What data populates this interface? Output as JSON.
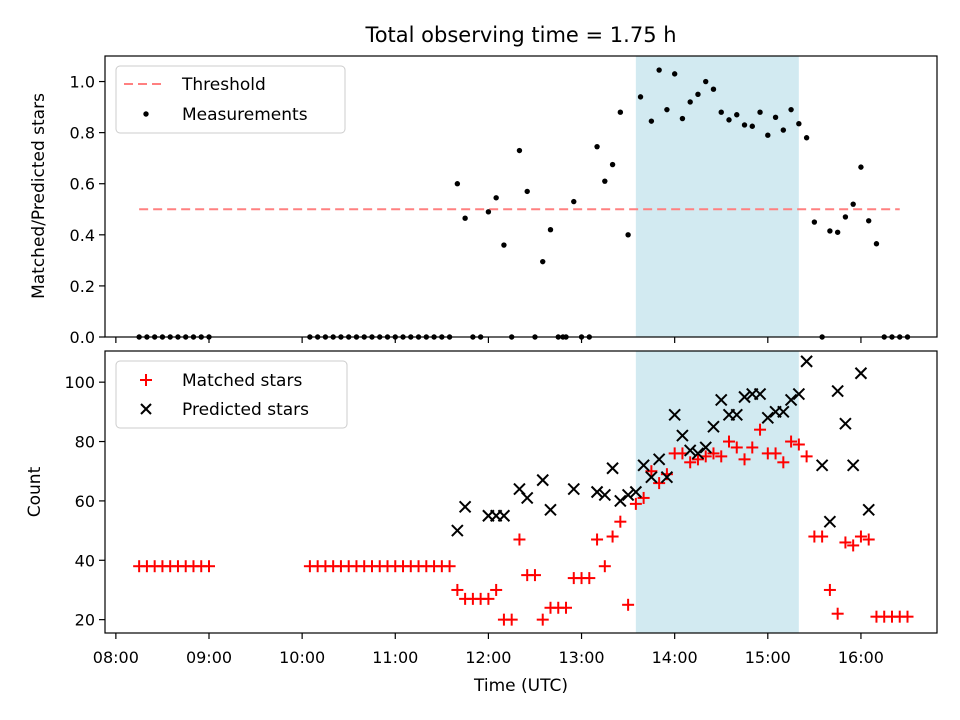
{
  "title": "Total observing time = 1.75 h",
  "colors": {
    "threshold": "#ff8080",
    "measurement": "#000000",
    "matched": "#ff0000",
    "predicted": "#000000",
    "highlight": "#add8e6"
  },
  "chart_data": [
    {
      "type": "scatter",
      "panel": "top",
      "ylabel": "Matched/Predicted stars",
      "ylim": [
        0,
        1.1
      ],
      "yticks": [
        "0.0",
        "0.2",
        "0.4",
        "0.6",
        "0.8",
        "1.0"
      ],
      "xlim": [
        "07:53",
        "16:49"
      ],
      "highlight_span": [
        "13:35",
        "15:20"
      ],
      "legend_position": "top-left",
      "threshold": {
        "name": "Threshold",
        "y": 0.5,
        "x": [
          "08:15",
          "16:25"
        ],
        "style": "dashed"
      },
      "series": [
        {
          "name": "Measurements",
          "marker": "dot",
          "points": [
            [
              "08:15",
              0
            ],
            [
              "08:20",
              0
            ],
            [
              "08:25",
              0
            ],
            [
              "08:30",
              0
            ],
            [
              "08:35",
              0
            ],
            [
              "08:40",
              0
            ],
            [
              "08:45",
              0
            ],
            [
              "08:50",
              0
            ],
            [
              "08:55",
              0
            ],
            [
              "09:00",
              0
            ],
            [
              "10:05",
              0
            ],
            [
              "10:10",
              0
            ],
            [
              "10:15",
              0
            ],
            [
              "10:20",
              0
            ],
            [
              "10:25",
              0
            ],
            [
              "10:30",
              0
            ],
            [
              "10:35",
              0
            ],
            [
              "10:40",
              0
            ],
            [
              "10:45",
              0
            ],
            [
              "10:50",
              0
            ],
            [
              "10:55",
              0
            ],
            [
              "11:00",
              0
            ],
            [
              "11:05",
              0
            ],
            [
              "11:10",
              0
            ],
            [
              "11:15",
              0
            ],
            [
              "11:20",
              0
            ],
            [
              "11:25",
              0
            ],
            [
              "11:30",
              0
            ],
            [
              "11:35",
              0
            ],
            [
              "11:40",
              0.6
            ],
            [
              "11:45",
              0.465
            ],
            [
              "11:50",
              0
            ],
            [
              "11:55",
              0
            ],
            [
              "12:00",
              0.49
            ],
            [
              "12:05",
              0.545
            ],
            [
              "12:10",
              0.36
            ],
            [
              "12:15",
              0
            ],
            [
              "12:20",
              0.73
            ],
            [
              "12:25",
              0.57
            ],
            [
              "12:30",
              0
            ],
            [
              "12:35",
              0.295
            ],
            [
              "12:40",
              0.42
            ],
            [
              "12:45",
              0
            ],
            [
              "12:48",
              0
            ],
            [
              "12:50",
              0
            ],
            [
              "12:55",
              0.53
            ],
            [
              "13:00",
              0
            ],
            [
              "13:05",
              0
            ],
            [
              "13:10",
              0.745
            ],
            [
              "13:15",
              0.61
            ],
            [
              "13:20",
              0.675
            ],
            [
              "13:25",
              0.88
            ],
            [
              "13:30",
              0.4
            ],
            [
              "13:38",
              0.94
            ],
            [
              "13:45",
              0.845
            ],
            [
              "13:50",
              1.045
            ],
            [
              "13:55",
              0.89
            ],
            [
              "14:00",
              1.03
            ],
            [
              "14:05",
              0.855
            ],
            [
              "14:10",
              0.92
            ],
            [
              "14:15",
              0.95
            ],
            [
              "14:20",
              1.0
            ],
            [
              "14:25",
              0.97
            ],
            [
              "14:30",
              0.88
            ],
            [
              "14:35",
              0.85
            ],
            [
              "14:40",
              0.87
            ],
            [
              "14:45",
              0.83
            ],
            [
              "14:50",
              0.825
            ],
            [
              "14:55",
              0.88
            ],
            [
              "15:00",
              0.79
            ],
            [
              "15:05",
              0.86
            ],
            [
              "15:10",
              0.81
            ],
            [
              "15:15",
              0.89
            ],
            [
              "15:20",
              0.835
            ],
            [
              "15:25",
              0.78
            ],
            [
              "15:30",
              0.45
            ],
            [
              "15:35",
              0
            ],
            [
              "15:40",
              0.415
            ],
            [
              "15:45",
              0.41
            ],
            [
              "15:50",
              0.47
            ],
            [
              "15:55",
              0.52
            ],
            [
              "16:00",
              0.665
            ],
            [
              "16:05",
              0.455
            ],
            [
              "16:10",
              0.365
            ],
            [
              "16:15",
              0
            ],
            [
              "16:20",
              0
            ],
            [
              "16:25",
              0
            ],
            [
              "16:30",
              0
            ]
          ]
        }
      ]
    },
    {
      "type": "scatter",
      "panel": "bottom",
      "xlabel": "Time (UTC)",
      "ylabel": "Count",
      "ylim": [
        15.5,
        110.5
      ],
      "yticks": [
        "20",
        "40",
        "60",
        "80",
        "100"
      ],
      "xlim": [
        "07:53",
        "16:49"
      ],
      "xticks": [
        "08:00",
        "09:00",
        "10:00",
        "11:00",
        "12:00",
        "13:00",
        "14:00",
        "15:00",
        "16:00"
      ],
      "highlight_span": [
        "13:35",
        "15:20"
      ],
      "legend_position": "top-left",
      "series": [
        {
          "name": "Matched stars",
          "marker": "plus",
          "points": [
            [
              "08:15",
              38
            ],
            [
              "08:20",
              38
            ],
            [
              "08:25",
              38
            ],
            [
              "08:30",
              38
            ],
            [
              "08:35",
              38
            ],
            [
              "08:40",
              38
            ],
            [
              "08:45",
              38
            ],
            [
              "08:50",
              38
            ],
            [
              "08:55",
              38
            ],
            [
              "09:00",
              38
            ],
            [
              "10:05",
              38
            ],
            [
              "10:10",
              38
            ],
            [
              "10:15",
              38
            ],
            [
              "10:20",
              38
            ],
            [
              "10:25",
              38
            ],
            [
              "10:30",
              38
            ],
            [
              "10:35",
              38
            ],
            [
              "10:40",
              38
            ],
            [
              "10:45",
              38
            ],
            [
              "10:50",
              38
            ],
            [
              "10:55",
              38
            ],
            [
              "11:00",
              38
            ],
            [
              "11:05",
              38
            ],
            [
              "11:10",
              38
            ],
            [
              "11:15",
              38
            ],
            [
              "11:20",
              38
            ],
            [
              "11:25",
              38
            ],
            [
              "11:30",
              38
            ],
            [
              "11:35",
              38
            ],
            [
              "11:40",
              30
            ],
            [
              "11:45",
              27
            ],
            [
              "11:50",
              27
            ],
            [
              "11:55",
              27
            ],
            [
              "12:00",
              27
            ],
            [
              "12:05",
              30
            ],
            [
              "12:10",
              20
            ],
            [
              "12:15",
              20
            ],
            [
              "12:20",
              47
            ],
            [
              "12:25",
              35
            ],
            [
              "12:30",
              35
            ],
            [
              "12:35",
              20
            ],
            [
              "12:40",
              24
            ],
            [
              "12:45",
              24
            ],
            [
              "12:50",
              24
            ],
            [
              "12:55",
              34
            ],
            [
              "13:00",
              34
            ],
            [
              "13:05",
              34
            ],
            [
              "13:10",
              47
            ],
            [
              "13:15",
              38
            ],
            [
              "13:20",
              48
            ],
            [
              "13:25",
              53
            ],
            [
              "13:30",
              25
            ],
            [
              "13:35",
              59
            ],
            [
              "13:40",
              61
            ],
            [
              "13:45",
              70
            ],
            [
              "13:50",
              66
            ],
            [
              "13:55",
              69
            ],
            [
              "14:00",
              76
            ],
            [
              "14:05",
              76
            ],
            [
              "14:10",
              73
            ],
            [
              "14:15",
              74
            ],
            [
              "14:20",
              75
            ],
            [
              "14:25",
              76
            ],
            [
              "14:30",
              75
            ],
            [
              "14:35",
              80
            ],
            [
              "14:40",
              78
            ],
            [
              "14:45",
              74
            ],
            [
              "14:50",
              78
            ],
            [
              "14:55",
              84
            ],
            [
              "15:00",
              76
            ],
            [
              "15:05",
              76
            ],
            [
              "15:10",
              73
            ],
            [
              "15:15",
              80
            ],
            [
              "15:20",
              79
            ],
            [
              "15:25",
              75
            ],
            [
              "15:30",
              48
            ],
            [
              "15:35",
              48
            ],
            [
              "15:40",
              30
            ],
            [
              "15:45",
              22
            ],
            [
              "15:50",
              46
            ],
            [
              "15:55",
              45
            ],
            [
              "16:00",
              48
            ],
            [
              "16:05",
              47
            ],
            [
              "16:10",
              21
            ],
            [
              "16:15",
              21
            ],
            [
              "16:20",
              21
            ],
            [
              "16:25",
              21
            ],
            [
              "16:30",
              21
            ]
          ]
        },
        {
          "name": "Predicted stars",
          "marker": "x",
          "points": [
            [
              "11:40",
              50
            ],
            [
              "11:45",
              58
            ],
            [
              "12:00",
              55
            ],
            [
              "12:05",
              55
            ],
            [
              "12:10",
              55
            ],
            [
              "12:20",
              64
            ],
            [
              "12:25",
              61
            ],
            [
              "12:35",
              67
            ],
            [
              "12:40",
              57
            ],
            [
              "12:55",
              64
            ],
            [
              "13:10",
              63
            ],
            [
              "13:15",
              62
            ],
            [
              "13:20",
              71
            ],
            [
              "13:25",
              60
            ],
            [
              "13:30",
              62
            ],
            [
              "13:35",
              63
            ],
            [
              "13:40",
              72
            ],
            [
              "13:45",
              68
            ],
            [
              "13:50",
              74
            ],
            [
              "13:55",
              68
            ],
            [
              "14:00",
              89
            ],
            [
              "14:05",
              82
            ],
            [
              "14:10",
              77
            ],
            [
              "14:15",
              76
            ],
            [
              "14:20",
              78
            ],
            [
              "14:25",
              85
            ],
            [
              "14:30",
              94
            ],
            [
              "14:35",
              89
            ],
            [
              "14:40",
              89
            ],
            [
              "14:45",
              95
            ],
            [
              "14:50",
              96
            ],
            [
              "14:55",
              96
            ],
            [
              "15:00",
              88
            ],
            [
              "15:05",
              90
            ],
            [
              "15:10",
              90
            ],
            [
              "15:15",
              94
            ],
            [
              "15:20",
              96
            ],
            [
              "15:25",
              107
            ],
            [
              "15:35",
              72
            ],
            [
              "15:40",
              53
            ],
            [
              "15:45",
              97
            ],
            [
              "15:50",
              86
            ],
            [
              "15:55",
              72
            ],
            [
              "16:00",
              103
            ],
            [
              "16:05",
              57
            ]
          ]
        }
      ]
    }
  ]
}
